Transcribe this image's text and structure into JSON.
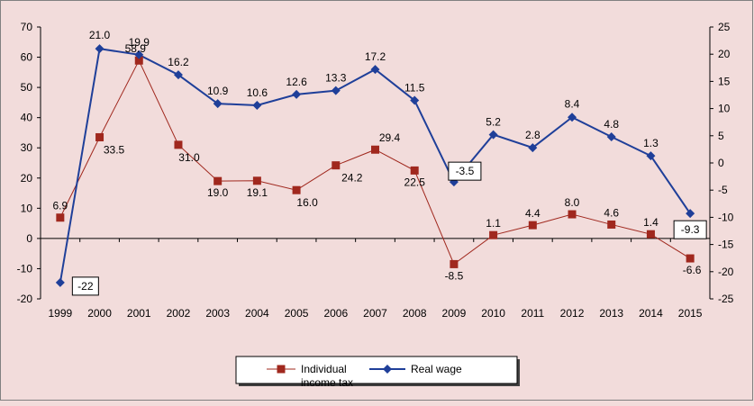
{
  "colors": {
    "background": "#f2dcdb",
    "individual_income_tax": "#a0281e",
    "real_wage": "#1f3f99",
    "axis": "#000000"
  },
  "chart_data": {
    "type": "line",
    "title": "",
    "xlabel": "",
    "ylabel": "",
    "x": [
      "1999",
      "2000",
      "2001",
      "2002",
      "2003",
      "2004",
      "2005",
      "2006",
      "2007",
      "2008",
      "2009",
      "2010",
      "2011",
      "2012",
      "2013",
      "2014",
      "2015"
    ],
    "y_left": {
      "lim": [
        -20,
        70
      ],
      "ticks": [
        -20,
        -10,
        0,
        10,
        20,
        30,
        40,
        50,
        60,
        70
      ]
    },
    "y_right": {
      "lim": [
        -25,
        25
      ],
      "ticks": [
        -25,
        -20,
        -15,
        -10,
        -5,
        0,
        5,
        10,
        15,
        20,
        25
      ]
    },
    "grid": false,
    "legend_position": "bottom",
    "series": [
      {
        "name": "Individual income tax",
        "axis": "left",
        "marker": "square",
        "values": [
          6.9,
          33.5,
          58.9,
          31.0,
          19.0,
          19.1,
          16.0,
          24.2,
          29.4,
          22.5,
          -8.5,
          1.1,
          4.4,
          8.0,
          4.6,
          1.4,
          -6.6
        ],
        "labels": [
          "6.9",
          "33.5",
          "58.9",
          "31.0",
          "19.0",
          "19.1",
          "16.0",
          "24.2",
          "29.4",
          "22.5",
          "-8.5",
          "1.1",
          "4.4",
          "8.0",
          "4.6",
          "1.4",
          "-6.6"
        ]
      },
      {
        "name": "Real wage",
        "axis": "right",
        "marker": "diamond",
        "values": [
          -22,
          21.0,
          19.9,
          16.2,
          10.9,
          10.6,
          12.6,
          13.3,
          17.2,
          11.5,
          -3.5,
          5.2,
          2.8,
          8.4,
          4.8,
          1.3,
          -9.3
        ],
        "labels": [
          "-22",
          "21.0",
          "19.9",
          "16.2",
          "10.9",
          "10.6",
          "12.6",
          "13.3",
          "17.2",
          "11.5",
          "-3.5",
          "5.2",
          "2.8",
          "8.4",
          "4.8",
          "1.3",
          "-9.3"
        ],
        "boxed_labels": [
          "-22",
          "-3.5",
          "-9.3"
        ]
      }
    ]
  }
}
